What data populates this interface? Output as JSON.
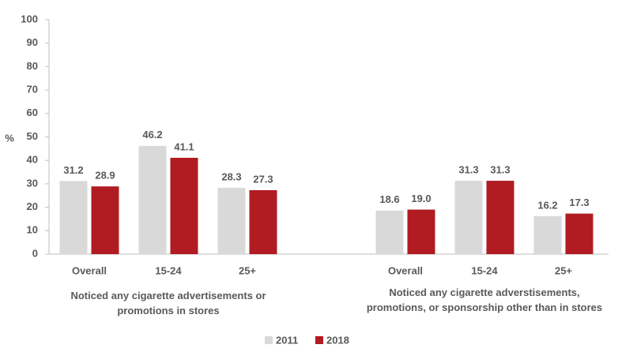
{
  "chart_data": {
    "type": "bar",
    "y_label": "%",
    "categories": [
      "Overall",
      "15-24",
      "25+",
      null,
      "Overall",
      "15-24",
      "25+"
    ],
    "group_labels": [
      "Noticed any cigarette advertisements or promotions in stores",
      "Noticed any cigarette adverstisements, promotions, or sponsorship other than in stores"
    ],
    "series": [
      {
        "name": "2011",
        "color": "#d9d9d9",
        "values": [
          31.2,
          46.2,
          28.3,
          null,
          18.6,
          31.3,
          16.2
        ],
        "value_labels": [
          "31.2",
          "46.2",
          "28.3",
          null,
          "18.6",
          "31.3",
          "16.2"
        ]
      },
      {
        "name": "2018",
        "color": "#b01c22",
        "values": [
          28.9,
          41.1,
          27.3,
          null,
          19.0,
          31.3,
          17.3
        ],
        "value_labels": [
          "28.9",
          "41.1",
          "27.3",
          null,
          "19.0",
          "31.3",
          "17.3"
        ]
      }
    ],
    "ylim": [
      0,
      100
    ],
    "yticks": [
      0,
      10,
      20,
      30,
      40,
      50,
      60,
      70,
      80,
      90,
      100
    ],
    "legend": "bottom"
  }
}
